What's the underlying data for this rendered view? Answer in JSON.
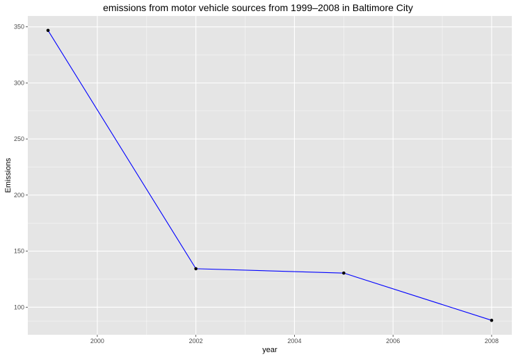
{
  "chart_data": {
    "type": "line",
    "title": "emissions from motor vehicle sources from 1999–2008 in Baltimore City",
    "xlabel": "year",
    "ylabel": "Emissions",
    "x": [
      1999,
      2002,
      2005,
      2008
    ],
    "series": [
      {
        "values": [
          346.82,
          134.31,
          130.43,
          88.28
        ]
      }
    ],
    "xlim": [
      1998.59,
      2008.41
    ],
    "ylim": [
      75.4,
      359.7
    ],
    "xticks": [
      2000,
      2002,
      2004,
      2006,
      2008
    ],
    "xtick_labels": [
      "2000",
      "2002",
      "2004",
      "2006",
      "2008"
    ],
    "yticks": [
      100,
      150,
      200,
      250,
      300,
      350
    ],
    "ytick_labels": [
      "100",
      "150",
      "200",
      "250",
      "300",
      "350"
    ],
    "grid": true,
    "legend": "none",
    "colors": {
      "line": "#0000ff",
      "point": "#000000",
      "panel": "#e5e5e5",
      "grid": "#ffffff"
    }
  }
}
